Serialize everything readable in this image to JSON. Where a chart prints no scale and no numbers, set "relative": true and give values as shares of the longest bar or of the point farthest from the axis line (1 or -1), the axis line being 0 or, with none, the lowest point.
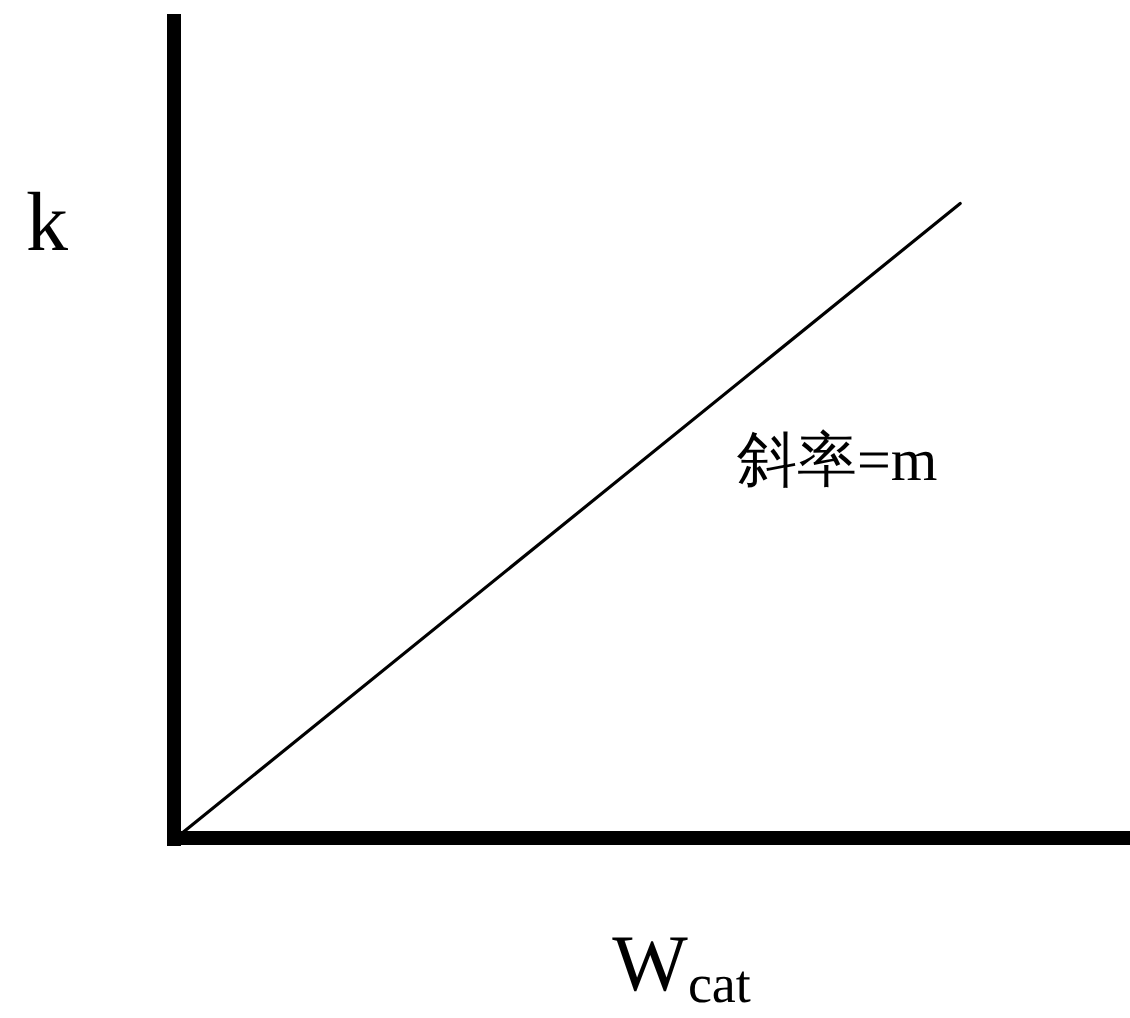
{
  "chart_data": {
    "type": "line",
    "xlabel": "W$_{cat}$",
    "ylabel": "k",
    "categories": [
      null,
      null
    ],
    "values": [
      0,
      1
    ],
    "relative": true,
    "color": "#000000",
    "annotations": [
      "斜率=m"
    ]
  }
}
